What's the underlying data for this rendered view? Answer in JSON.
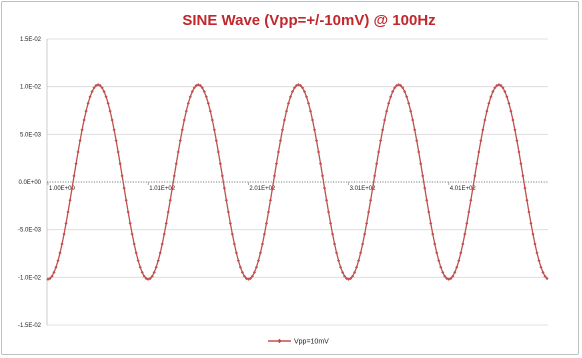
{
  "chart_data": {
    "type": "line",
    "title": "SINE Wave (Vpp=+/-10mV) @ 100Hz",
    "xlabel": "",
    "ylabel": "",
    "xlim": [
      0,
      500
    ],
    "ylim": [
      -0.015,
      0.015
    ],
    "y_ticks": [
      -0.015,
      -0.01,
      -0.005,
      0,
      0.005,
      0.01,
      0.015
    ],
    "y_tick_labels": [
      "-1.5E-02",
      "-1.0E-02",
      "-5.0E-03",
      "0.0E+00",
      "5.0E-03",
      "1.0E-02",
      "1.5E-02"
    ],
    "x_ticks": [
      1,
      101,
      201,
      301,
      401
    ],
    "x_tick_labels": [
      "1.00E+00",
      "1.01E+02",
      "2.01E+02",
      "3.01E+02",
      "4.01E+02"
    ],
    "grid": "horizontal",
    "legend": "bottom",
    "series": [
      {
        "name": "Vpp=10mV",
        "color": "#c0504d",
        "marker": "diamond",
        "amplitude": 0.0102,
        "period": 100,
        "phase_deg": -90,
        "x_start": 1,
        "x_end": 500,
        "x_step": 2
      }
    ]
  }
}
